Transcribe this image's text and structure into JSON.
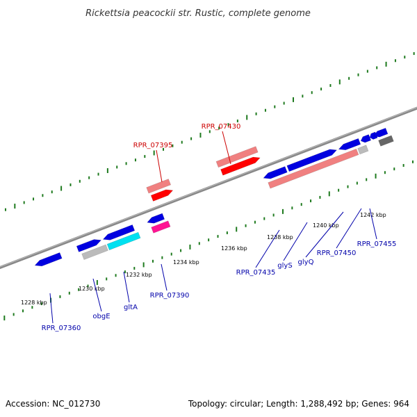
{
  "title": "Rickettsia peacockii str. Rustic, complete genome",
  "footer": {
    "accession": "Accession: NC_012730",
    "summary": "Topology: circular; Length: 1,288,492 bp; Genes: 964"
  },
  "ticks": [
    {
      "label": "1228 kbp"
    },
    {
      "label": "1230 kbp"
    },
    {
      "label": "1232 kbp"
    },
    {
      "label": "1234 kbp"
    },
    {
      "label": "1236 kbp"
    },
    {
      "label": "1238 kbp"
    },
    {
      "label": "1240 kbp"
    },
    {
      "label": "1242 kbp"
    }
  ],
  "gene_labels": [
    {
      "text": "RPR_07395",
      "color": "#cc0000"
    },
    {
      "text": "RPR_07430",
      "color": "#cc0000"
    },
    {
      "text": "RPR_07360",
      "color": "#0000aa"
    },
    {
      "text": "obgE",
      "color": "#0000aa"
    },
    {
      "text": "gltA",
      "color": "#0000aa"
    },
    {
      "text": "RPR_07390",
      "color": "#0000aa"
    },
    {
      "text": "RPR_07435",
      "color": "#0000aa"
    },
    {
      "text": "glyS",
      "color": "#0000aa"
    },
    {
      "text": "glyQ",
      "color": "#0000aa"
    },
    {
      "text": "RPR_07450",
      "color": "#0000aa"
    },
    {
      "text": "RPR_07455",
      "color": "#0000aa"
    }
  ],
  "colors": {
    "backbone": "#888888",
    "dots": "#1e7a1e",
    "cds_blue": "#0000e0",
    "rrna_red": "#ff0000",
    "rrna_pink": "#f08080",
    "gray": "#bbbbbb",
    "dark_gray": "#666666",
    "cyan": "#00e0f0",
    "magenta": "#ff1493",
    "light_magenta": "#ff69b4"
  }
}
